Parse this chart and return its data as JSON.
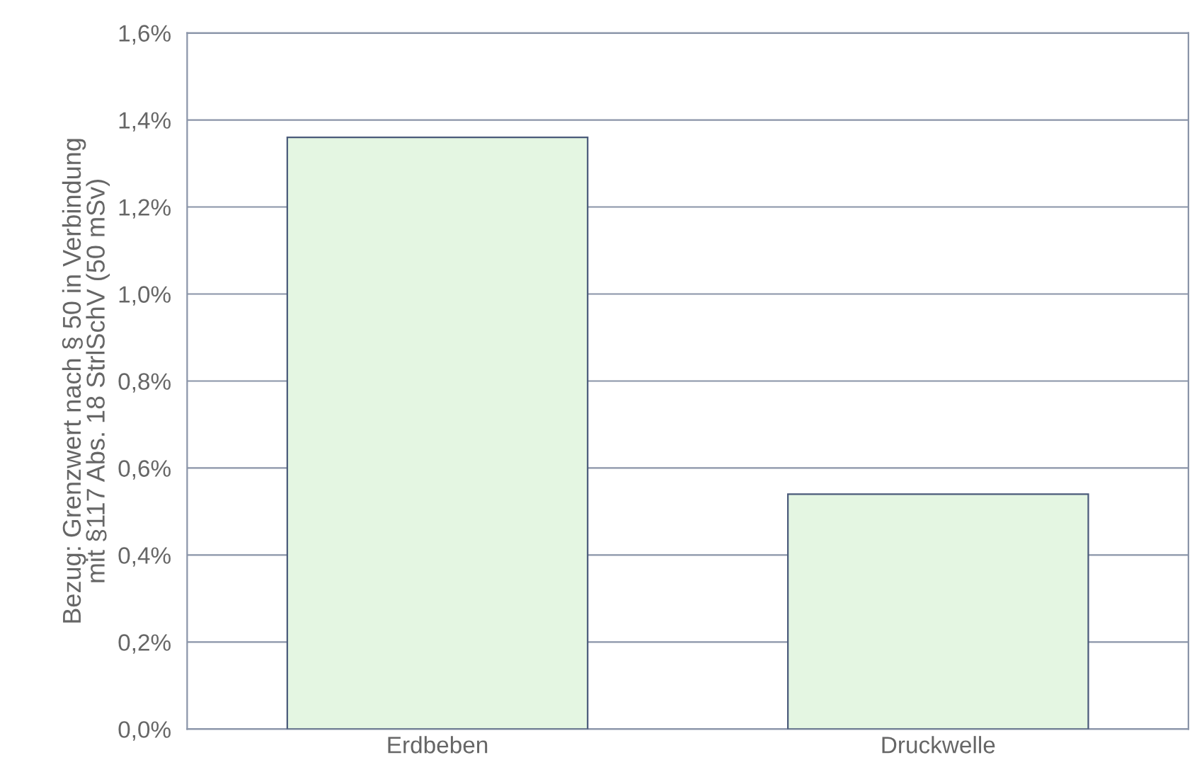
{
  "chart_data": {
    "type": "bar",
    "ylabel": "Bezug: Grenzwert nach § 50 in Verbindung\nmit §117 Abs. 18 StrlSchV (50 mSv)",
    "categories": [
      "Erdbeben",
      "Druckwelle"
    ],
    "values": [
      1.36,
      0.54
    ],
    "color": "#e4f6e2",
    "ylim": [
      0,
      1.6
    ],
    "yticks": [
      {
        "value": 0,
        "label": "0,0%"
      },
      {
        "value": 0.2,
        "label": "0,2%"
      },
      {
        "value": 0.4,
        "label": "0,4%"
      },
      {
        "value": 0.6,
        "label": "0,6%"
      },
      {
        "value": 0.8,
        "label": "0,8%"
      },
      {
        "value": 1.0,
        "label": "1,0%"
      },
      {
        "value": 1.2,
        "label": "1,2%"
      },
      {
        "value": 1.4,
        "label": "1,4%"
      },
      {
        "value": 1.6,
        "label": "1,6%"
      }
    ],
    "grid": "y",
    "legend": false
  }
}
